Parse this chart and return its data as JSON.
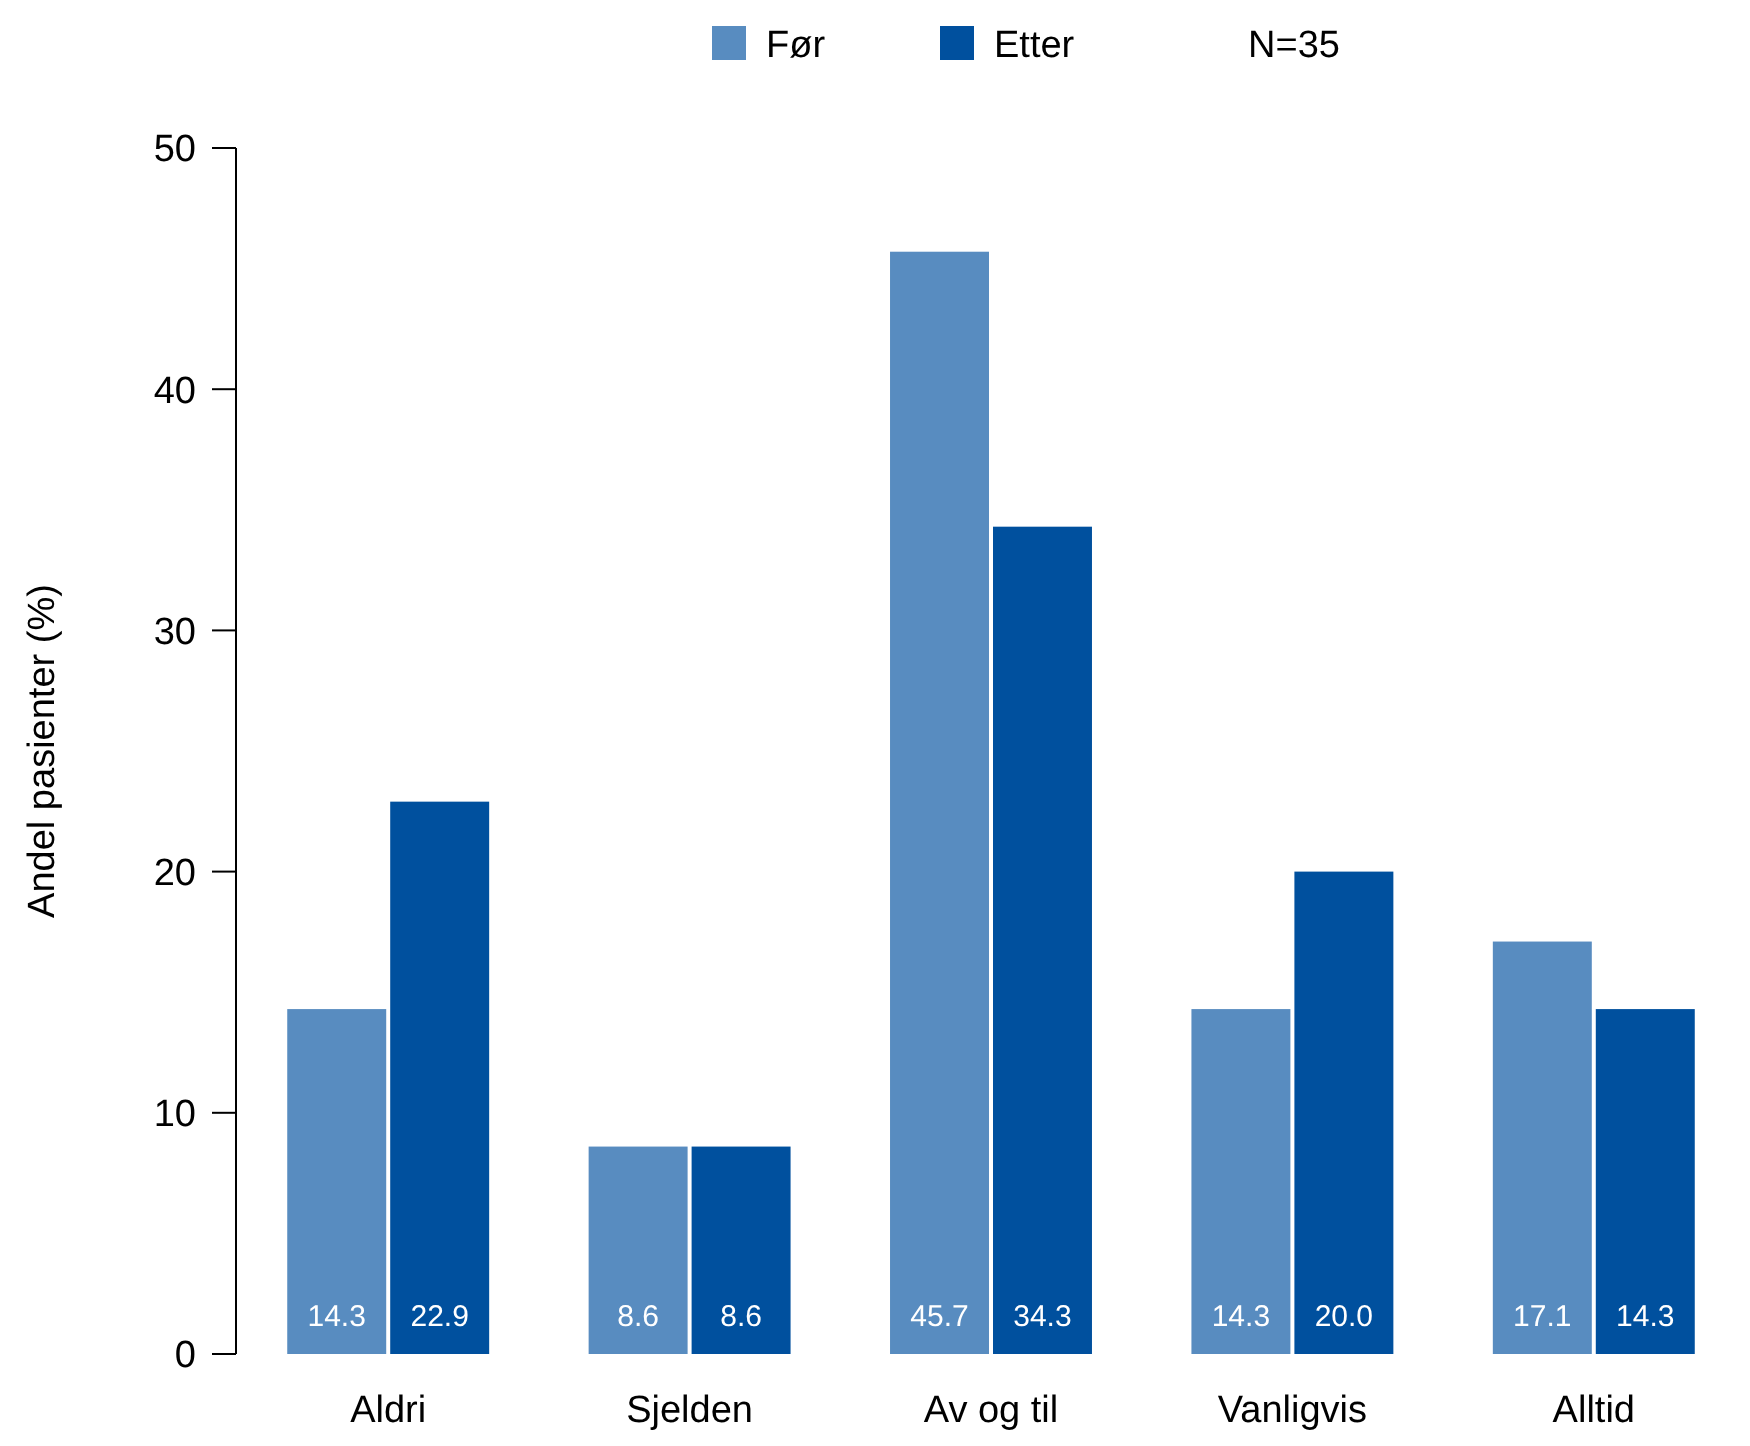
{
  "chart_data": {
    "type": "bar",
    "categories": [
      "Aldri",
      "Sjelden",
      "Av og til",
      "Vanligvis",
      "Alltid"
    ],
    "series": [
      {
        "name": "Før",
        "color": "#588cc0",
        "values": [
          14.3,
          8.6,
          45.7,
          14.3,
          17.1
        ],
        "value_labels": [
          "14.3",
          "8.6",
          "45.7",
          "14.3",
          "17.1"
        ]
      },
      {
        "name": "Etter",
        "color": "#00509e",
        "values": [
          22.9,
          8.6,
          34.3,
          20.0,
          14.3
        ],
        "value_labels": [
          "22.9",
          "8.6",
          "34.3",
          "20.0",
          "14.3"
        ]
      }
    ],
    "ylabel": "Andel pasienter (%)",
    "ylim": [
      0,
      50
    ],
    "yticks": [
      0,
      10,
      20,
      30,
      40,
      50
    ],
    "grid": false,
    "legend": "top",
    "annotations": [
      "N=35"
    ]
  }
}
